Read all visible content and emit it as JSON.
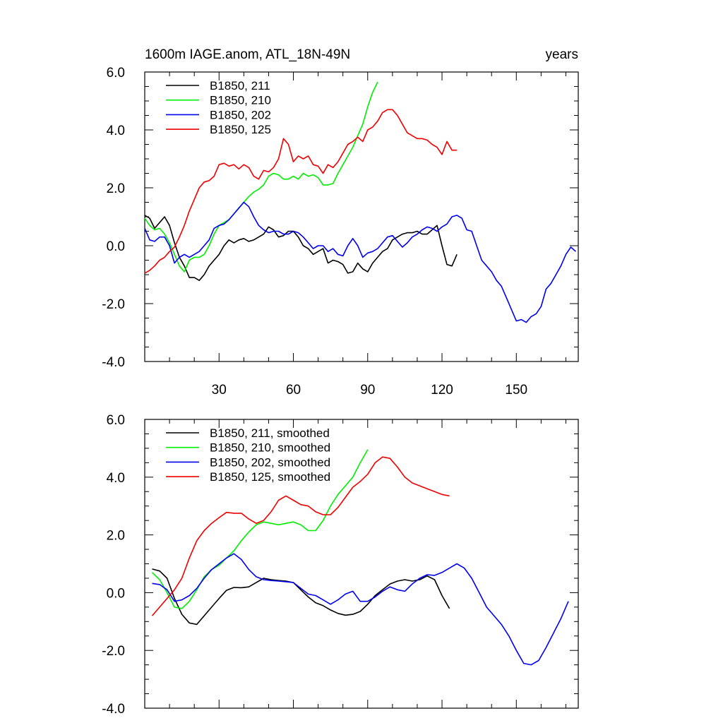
{
  "chart_data": [
    {
      "type": "line",
      "title_left": "1600m IAGE.anom, ATL_18N-49N",
      "title_right": "years",
      "xlim": [
        0,
        175
      ],
      "ylim": [
        -4,
        6
      ],
      "x_ticks": [
        30,
        60,
        90,
        120,
        150
      ],
      "x_tick_labels": [
        "30",
        "60",
        "90",
        "120",
        "150"
      ],
      "y_ticks": [
        -4,
        -2,
        0,
        2,
        4,
        6
      ],
      "y_tick_labels": [
        "-4.0",
        "-2.0",
        "0.0",
        "2.0",
        "4.0",
        "6.0"
      ],
      "legend_position": "top-left",
      "series": [
        {
          "name": "B1850, 211",
          "color": "#000000",
          "x": [
            0,
            2,
            4,
            6,
            8,
            10,
            12,
            14,
            16,
            18,
            20,
            22,
            24,
            26,
            28,
            30,
            32,
            34,
            36,
            38,
            40,
            42,
            44,
            46,
            48,
            50,
            52,
            54,
            56,
            58,
            60,
            62,
            64,
            66,
            68,
            70,
            72,
            74,
            76,
            78,
            80,
            82,
            84,
            86,
            88,
            90,
            92,
            94,
            96,
            98,
            100,
            102,
            104,
            106,
            108,
            110,
            112,
            114,
            116,
            118,
            120,
            122,
            124,
            126
          ],
          "y": [
            1.05,
            0.95,
            0.6,
            0.8,
            1.0,
            0.7,
            0.1,
            -0.4,
            -0.7,
            -1.1,
            -1.1,
            -1.2,
            -1.0,
            -0.7,
            -0.5,
            -0.3,
            0.0,
            0.2,
            0.1,
            0.2,
            0.25,
            0.15,
            0.2,
            0.3,
            0.4,
            0.65,
            0.55,
            0.3,
            0.35,
            0.5,
            0.5,
            0.3,
            0.0,
            -0.1,
            -0.3,
            -0.2,
            -0.1,
            -0.6,
            -0.5,
            -0.55,
            -0.65,
            -0.95,
            -0.9,
            -0.6,
            -0.8,
            -0.9,
            -0.6,
            -0.4,
            -0.2,
            -0.1,
            0.2,
            0.3,
            0.4,
            0.45,
            0.45,
            0.5,
            0.4,
            0.4,
            0.55,
            0.7,
            0.0,
            -0.65,
            -0.7,
            -0.3
          ]
        },
        {
          "name": "B1850, 210",
          "color": "#00ee00",
          "x": [
            0,
            2,
            4,
            6,
            8,
            10,
            12,
            14,
            16,
            18,
            20,
            22,
            24,
            26,
            28,
            30,
            32,
            34,
            36,
            38,
            40,
            42,
            44,
            46,
            48,
            50,
            52,
            54,
            56,
            58,
            60,
            62,
            64,
            66,
            68,
            70,
            72,
            74,
            76,
            78,
            80,
            82,
            84,
            86,
            88,
            90,
            92,
            94
          ],
          "y": [
            0.95,
            0.7,
            0.55,
            0.6,
            0.4,
            0.1,
            -0.3,
            -0.7,
            -0.9,
            -0.5,
            -0.4,
            -0.4,
            -0.3,
            0.0,
            0.4,
            0.7,
            0.8,
            0.9,
            1.1,
            1.3,
            1.5,
            1.7,
            1.85,
            1.95,
            2.1,
            2.4,
            2.5,
            2.45,
            2.3,
            2.3,
            2.4,
            2.3,
            2.5,
            2.4,
            2.45,
            2.35,
            2.1,
            2.1,
            2.15,
            2.5,
            2.8,
            3.1,
            3.4,
            3.8,
            4.2,
            4.8,
            5.3,
            5.65
          ]
        },
        {
          "name": "B1850, 202",
          "color": "#0000ee",
          "x": [
            0,
            2,
            4,
            6,
            8,
            10,
            12,
            14,
            16,
            18,
            20,
            22,
            24,
            26,
            28,
            30,
            32,
            34,
            36,
            38,
            40,
            42,
            44,
            46,
            48,
            50,
            52,
            54,
            56,
            58,
            60,
            62,
            64,
            66,
            68,
            70,
            72,
            74,
            76,
            78,
            80,
            82,
            84,
            86,
            88,
            90,
            92,
            94,
            96,
            98,
            100,
            102,
            104,
            106,
            108,
            110,
            112,
            114,
            116,
            118,
            120,
            122,
            124,
            126,
            128,
            130,
            132,
            134,
            136,
            138,
            140,
            142,
            144,
            146,
            148,
            150,
            152,
            154,
            156,
            158,
            160,
            162,
            164,
            166,
            168,
            170,
            172,
            174
          ],
          "y": [
            0.6,
            0.2,
            0.15,
            0.3,
            0.3,
            0.0,
            -0.6,
            -0.4,
            -0.3,
            -0.4,
            -0.3,
            -0.2,
            0.0,
            0.2,
            0.6,
            0.7,
            0.75,
            0.9,
            1.1,
            1.3,
            1.5,
            1.35,
            1.0,
            0.7,
            0.55,
            0.45,
            0.5,
            0.5,
            0.4,
            0.4,
            0.5,
            0.45,
            0.3,
            0.1,
            -0.1,
            0.0,
            0.0,
            -0.2,
            -0.1,
            -0.3,
            -0.35,
            0.0,
            0.25,
            0.0,
            -0.4,
            -0.25,
            -0.2,
            -0.1,
            0.1,
            0.3,
            0.35,
            0.15,
            -0.05,
            0.1,
            0.3,
            0.4,
            0.55,
            0.65,
            0.6,
            0.5,
            0.65,
            0.75,
            1.0,
            1.05,
            0.95,
            0.55,
            0.5,
            0.0,
            -0.5,
            -0.7,
            -0.9,
            -1.2,
            -1.4,
            -1.8,
            -2.2,
            -2.6,
            -2.55,
            -2.65,
            -2.45,
            -2.35,
            -2.1,
            -1.5,
            -1.3,
            -1.0,
            -0.7,
            -0.3,
            -0.05,
            -0.2
          ]
        },
        {
          "name": "B1850, 125",
          "color": "#ee0000",
          "x": [
            0,
            2,
            4,
            6,
            8,
            10,
            12,
            14,
            16,
            18,
            20,
            22,
            24,
            26,
            28,
            30,
            32,
            34,
            36,
            38,
            40,
            42,
            44,
            46,
            48,
            50,
            52,
            54,
            56,
            58,
            60,
            62,
            64,
            66,
            68,
            70,
            72,
            74,
            76,
            78,
            80,
            82,
            84,
            86,
            88,
            90,
            92,
            94,
            96,
            98,
            100,
            102,
            104,
            106,
            108,
            110,
            112,
            114,
            116,
            118,
            120,
            122,
            124,
            126
          ],
          "y": [
            -0.95,
            -0.85,
            -0.7,
            -0.5,
            -0.4,
            -0.2,
            -0.05,
            0.3,
            0.7,
            1.2,
            1.6,
            2.0,
            2.2,
            2.25,
            2.4,
            2.8,
            2.85,
            2.75,
            2.8,
            2.65,
            2.8,
            2.7,
            2.4,
            2.3,
            2.6,
            2.55,
            2.7,
            3.0,
            3.7,
            3.5,
            2.9,
            3.1,
            3.0,
            3.1,
            2.8,
            2.75,
            2.5,
            2.8,
            2.7,
            2.9,
            3.2,
            3.5,
            3.6,
            3.75,
            3.6,
            4.0,
            4.1,
            4.3,
            4.6,
            4.7,
            4.7,
            4.5,
            4.2,
            3.9,
            3.8,
            3.7,
            3.7,
            3.65,
            3.5,
            3.4,
            3.15,
            3.6,
            3.3,
            3.3
          ]
        }
      ]
    },
    {
      "type": "line",
      "xlim": [
        0,
        175
      ],
      "ylim": [
        -4,
        6
      ],
      "x_ticks": [
        30,
        60,
        90,
        120,
        150
      ],
      "x_tick_labels": [
        "",
        "",
        "",
        "",
        ""
      ],
      "y_ticks": [
        -4,
        -2,
        0,
        2,
        4,
        6
      ],
      "y_tick_labels": [
        "-4.0",
        "-2.0",
        "0.0",
        "2.0",
        "4.0",
        "6.0"
      ],
      "legend_position": "top-left",
      "series": [
        {
          "name": "B1850, 211, smoothed",
          "color": "#000000",
          "x": [
            3,
            6,
            9,
            12,
            15,
            18,
            21,
            24,
            27,
            30,
            33,
            36,
            39,
            42,
            45,
            48,
            51,
            54,
            57,
            60,
            63,
            66,
            69,
            72,
            75,
            78,
            81,
            84,
            87,
            90,
            93,
            96,
            99,
            102,
            105,
            108,
            111,
            114,
            117,
            120,
            123
          ],
          "y": [
            0.82,
            0.75,
            0.5,
            -0.2,
            -0.75,
            -1.05,
            -1.1,
            -0.8,
            -0.5,
            -0.2,
            0.08,
            0.18,
            0.17,
            0.2,
            0.35,
            0.5,
            0.45,
            0.42,
            0.4,
            0.35,
            0.1,
            -0.15,
            -0.35,
            -0.45,
            -0.6,
            -0.72,
            -0.78,
            -0.75,
            -0.65,
            -0.4,
            -0.1,
            0.1,
            0.3,
            0.4,
            0.45,
            0.4,
            0.45,
            0.58,
            0.45,
            -0.1,
            -0.55
          ]
        },
        {
          "name": "B1850, 210, smoothed",
          "color": "#00ee00",
          "x": [
            3,
            6,
            9,
            12,
            15,
            18,
            21,
            24,
            27,
            30,
            33,
            36,
            39,
            42,
            45,
            48,
            51,
            54,
            57,
            60,
            63,
            66,
            69,
            72,
            75,
            78,
            81,
            84,
            87,
            90
          ],
          "y": [
            0.7,
            0.45,
            0.0,
            -0.5,
            -0.55,
            -0.3,
            0.1,
            0.55,
            0.8,
            0.95,
            1.2,
            1.45,
            1.8,
            2.1,
            2.35,
            2.45,
            2.4,
            2.35,
            2.4,
            2.45,
            2.35,
            2.15,
            2.15,
            2.5,
            3.0,
            3.4,
            3.7,
            4.0,
            4.5,
            4.95
          ]
        },
        {
          "name": "B1850, 202, smoothed",
          "color": "#0000ee",
          "x": [
            3,
            6,
            9,
            12,
            15,
            18,
            21,
            24,
            27,
            30,
            33,
            36,
            39,
            42,
            45,
            48,
            51,
            54,
            57,
            60,
            63,
            66,
            69,
            72,
            75,
            78,
            81,
            84,
            87,
            90,
            93,
            96,
            99,
            102,
            105,
            108,
            111,
            114,
            117,
            120,
            123,
            126,
            129,
            132,
            135,
            138,
            141,
            144,
            147,
            150,
            153,
            156,
            159,
            162,
            165,
            168,
            171
          ],
          "y": [
            0.32,
            0.28,
            0.1,
            -0.3,
            -0.25,
            -0.1,
            0.15,
            0.5,
            0.8,
            1.0,
            1.2,
            1.35,
            1.15,
            0.8,
            0.55,
            0.45,
            0.42,
            0.4,
            0.38,
            0.35,
            0.15,
            -0.05,
            -0.1,
            -0.25,
            -0.4,
            -0.25,
            -0.05,
            0.05,
            -0.3,
            -0.3,
            -0.15,
            0.05,
            0.2,
            0.1,
            0.05,
            0.3,
            0.5,
            0.62,
            0.6,
            0.7,
            0.85,
            1.0,
            0.85,
            0.5,
            0.0,
            -0.5,
            -0.8,
            -1.1,
            -1.5,
            -2.0,
            -2.45,
            -2.5,
            -2.35,
            -1.9,
            -1.4,
            -0.9,
            -0.3
          ]
        },
        {
          "name": "B1850, 125, smoothed",
          "color": "#ee0000",
          "x": [
            3,
            6,
            9,
            12,
            15,
            18,
            21,
            24,
            27,
            30,
            33,
            36,
            39,
            42,
            45,
            48,
            51,
            54,
            57,
            60,
            63,
            66,
            69,
            72,
            75,
            78,
            81,
            84,
            87,
            90,
            93,
            96,
            99,
            102,
            105,
            108,
            111,
            114,
            117,
            120,
            123
          ],
          "y": [
            -0.8,
            -0.5,
            -0.2,
            0.1,
            0.5,
            1.2,
            1.8,
            2.15,
            2.4,
            2.6,
            2.78,
            2.75,
            2.75,
            2.55,
            2.4,
            2.5,
            2.8,
            3.2,
            3.35,
            3.2,
            3.05,
            3.0,
            2.8,
            2.7,
            2.7,
            2.95,
            3.3,
            3.65,
            3.85,
            4.1,
            4.5,
            4.7,
            4.65,
            4.35,
            4.0,
            3.8,
            3.7,
            3.6,
            3.5,
            3.4,
            3.35
          ]
        }
      ]
    }
  ]
}
